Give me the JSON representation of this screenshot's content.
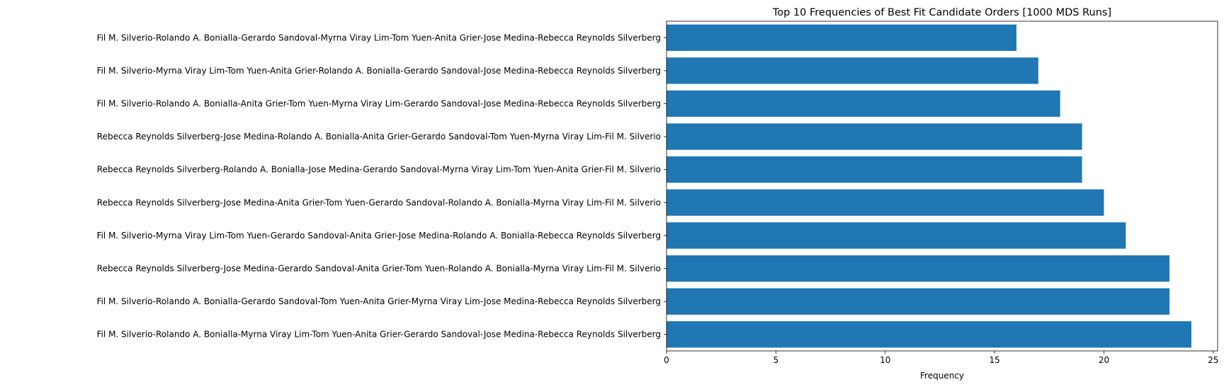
{
  "chart_data": {
    "type": "bar",
    "orientation": "horizontal",
    "title": "Top 10 Frequencies of Best Fit Candidate Orders [1000 MDS Runs]",
    "xlabel": "Frequency",
    "ylabel": "",
    "xlim": [
      0,
      25.2
    ],
    "xticks": [
      0,
      5,
      10,
      15,
      20,
      25
    ],
    "grid": false,
    "bar_color": "#1f77b4",
    "categories": [
      "Fil M. Silverio-Rolando A. Bonialla-Myrna Viray Lim-Tom Yuen-Anita Grier-Gerardo Sandoval-Jose Medina-Rebecca Reynolds Silverberg",
      "Fil M. Silverio-Rolando A. Bonialla-Gerardo Sandoval-Tom Yuen-Anita Grier-Myrna Viray Lim-Jose Medina-Rebecca Reynolds Silverberg",
      "Rebecca Reynolds Silverberg-Jose Medina-Gerardo Sandoval-Anita Grier-Tom Yuen-Rolando A. Bonialla-Myrna Viray Lim-Fil M. Silverio",
      "Fil M. Silverio-Myrna Viray Lim-Tom Yuen-Gerardo Sandoval-Anita Grier-Jose Medina-Rolando A. Bonialla-Rebecca Reynolds Silverberg",
      "Rebecca Reynolds Silverberg-Jose Medina-Anita Grier-Tom Yuen-Gerardo Sandoval-Rolando A. Bonialla-Myrna Viray Lim-Fil M. Silverio",
      "Rebecca Reynolds Silverberg-Rolando A. Bonialla-Jose Medina-Gerardo Sandoval-Myrna Viray Lim-Tom Yuen-Anita Grier-Fil M. Silverio",
      "Rebecca Reynolds Silverberg-Jose Medina-Rolando A. Bonialla-Anita Grier-Gerardo Sandoval-Tom Yuen-Myrna Viray Lim-Fil M. Silverio",
      "Fil M. Silverio-Rolando A. Bonialla-Anita Grier-Tom Yuen-Myrna Viray Lim-Gerardo Sandoval-Jose Medina-Rebecca Reynolds Silverberg",
      "Fil M. Silverio-Myrna Viray Lim-Tom Yuen-Anita Grier-Rolando A. Bonialla-Gerardo Sandoval-Jose Medina-Rebecca Reynolds Silverberg",
      "Fil M. Silverio-Rolando A. Bonialla-Gerardo Sandoval-Myrna Viray Lim-Tom Yuen-Anita Grier-Jose Medina-Rebecca Reynolds Silverberg"
    ],
    "values": [
      24,
      23,
      23,
      21,
      20,
      19,
      19,
      18,
      17,
      16
    ]
  }
}
